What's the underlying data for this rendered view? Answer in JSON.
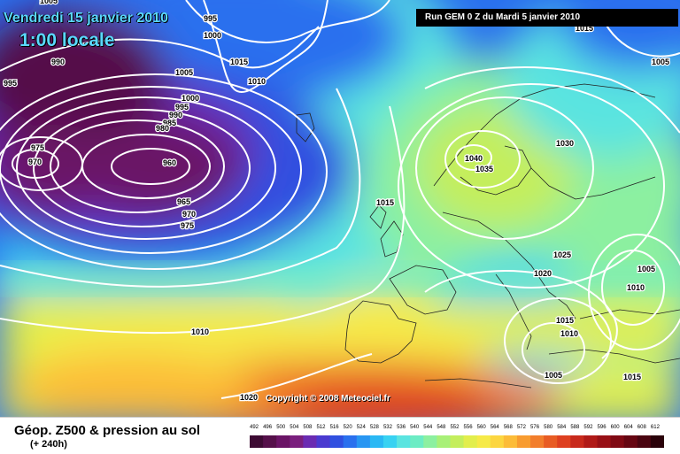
{
  "header": {
    "date": "Vendredi 15 janvier 2010",
    "time": "1:00 locale",
    "run": "Run GEM 0 Z du Mardi 5 janvier 2010"
  },
  "copyright": "Copyright © 2008 Meteociel.fr",
  "legend": {
    "title": "Géop. Z500 & pression au sol",
    "subtitle": "(+ 240h)",
    "scale": [
      "492",
      "496",
      "500",
      "504",
      "508",
      "512",
      "516",
      "520",
      "524",
      "528",
      "532",
      "536",
      "540",
      "544",
      "548",
      "552",
      "556",
      "560",
      "564",
      "568",
      "572",
      "576",
      "580",
      "584",
      "588",
      "592",
      "596",
      "600",
      "604",
      "608",
      "612"
    ],
    "colors": [
      "#3d0b33",
      "#55104a",
      "#6a1466",
      "#7a1f7e",
      "#6a2bb2",
      "#4a3ad0",
      "#3050e0",
      "#2a70ee",
      "#2896f2",
      "#2ab8f4",
      "#38d2f2",
      "#5ae4e0",
      "#6cecc4",
      "#8cf0a0",
      "#a8f078",
      "#c4ee5c",
      "#e2ee4c",
      "#f6ea48",
      "#fcd640",
      "#fcbc38",
      "#f89c30",
      "#f27e2c",
      "#e85c24",
      "#de4020",
      "#c82a1c",
      "#b01a18",
      "#981016",
      "#800a14",
      "#660612",
      "#4a0410",
      "#2a020a"
    ]
  },
  "isobars": [
    {
      "text": "1005",
      "group": "nw"
    },
    {
      "text": "995",
      "group": "nw"
    },
    {
      "text": "1000",
      "group": "nw"
    },
    {
      "text": "990",
      "group": "nw"
    },
    {
      "text": "995",
      "group": "nw"
    },
    {
      "text": "1015",
      "group": "nw"
    },
    {
      "text": "1005",
      "group": "nw"
    },
    {
      "text": "1010",
      "group": "nw"
    },
    {
      "text": "1015",
      "group": "ne"
    },
    {
      "text": "1005",
      "group": "ne"
    },
    {
      "text": "1000",
      "group": "low"
    },
    {
      "text": "995",
      "group": "low"
    },
    {
      "text": "990",
      "group": "low"
    },
    {
      "text": "985",
      "group": "low"
    },
    {
      "text": "980",
      "group": "low"
    },
    {
      "text": "975",
      "group": "low"
    },
    {
      "text": "970",
      "group": "low"
    },
    {
      "text": "960",
      "group": "low"
    },
    {
      "text": "965",
      "group": "low"
    },
    {
      "text": "970",
      "group": "low"
    },
    {
      "text": "975",
      "group": "low"
    },
    {
      "text": "1040",
      "group": "high"
    },
    {
      "text": "1035",
      "group": "high"
    },
    {
      "text": "1030",
      "group": "high"
    },
    {
      "text": "1015",
      "group": "mid"
    },
    {
      "text": "1025",
      "group": "eur"
    },
    {
      "text": "1020",
      "group": "eur"
    },
    {
      "text": "1010",
      "group": "eur"
    },
    {
      "text": "1005",
      "group": "eur"
    },
    {
      "text": "1015",
      "group": "eur"
    },
    {
      "text": "1010",
      "group": "eur"
    },
    {
      "text": "1005",
      "group": "eur"
    },
    {
      "text": "1015",
      "group": "eur"
    },
    {
      "text": "1010",
      "group": "sw"
    },
    {
      "text": "1020",
      "group": "sw"
    }
  ]
}
